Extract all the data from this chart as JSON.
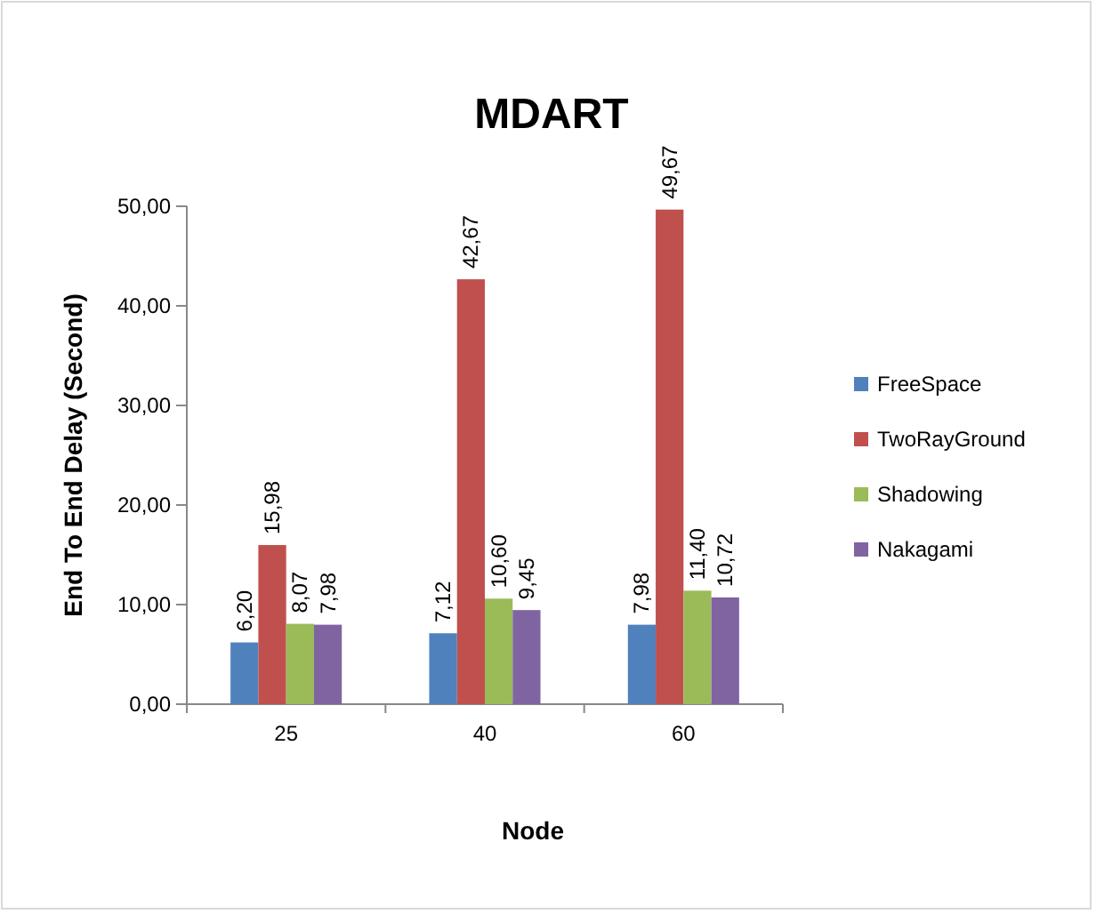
{
  "chart_data": {
    "type": "bar",
    "title": "MDART",
    "xlabel": "Node",
    "ylabel": "End To End Delay (Second)",
    "categories": [
      "25",
      "40",
      "60"
    ],
    "series": [
      {
        "name": "FreeSpace",
        "color": "#4f81bd",
        "values": [
          6.2,
          7.12,
          7.98
        ],
        "value_labels": [
          "6,20",
          "7,12",
          "7,98"
        ]
      },
      {
        "name": "TwoRayGround",
        "color": "#c0504d",
        "values": [
          15.98,
          42.67,
          49.67
        ],
        "value_labels": [
          "15,98",
          "42,67",
          "49,67"
        ]
      },
      {
        "name": "Shadowing",
        "color": "#9bbb59",
        "values": [
          8.07,
          10.6,
          11.4
        ],
        "value_labels": [
          "8,07",
          "10,60",
          "11,40"
        ]
      },
      {
        "name": "Nakagami",
        "color": "#8064a2",
        "values": [
          7.98,
          9.45,
          10.72
        ],
        "value_labels": [
          "7,98",
          "9,45",
          "10,72"
        ]
      }
    ],
    "ylim": [
      0,
      50
    ],
    "yticks": [
      {
        "value": 0,
        "label": "0,00"
      },
      {
        "value": 10,
        "label": "10,00"
      },
      {
        "value": 20,
        "label": "20,00"
      },
      {
        "value": 30,
        "label": "30,00"
      },
      {
        "value": 40,
        "label": "40,00"
      },
      {
        "value": 50,
        "label": "50,00"
      }
    ],
    "legend": "right"
  }
}
